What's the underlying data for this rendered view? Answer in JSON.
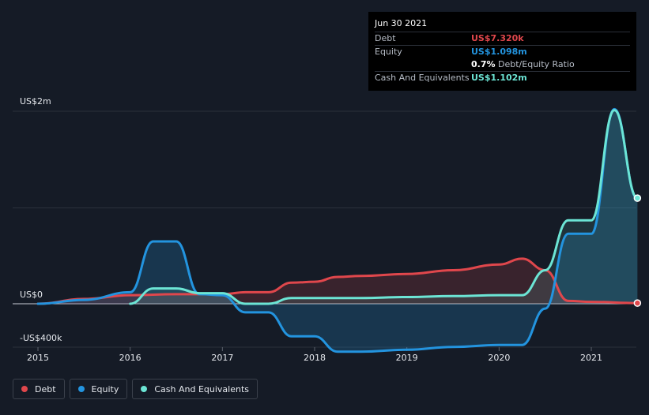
{
  "tooltip": {
    "date": "Jun 30 2021",
    "debt_label": "Debt",
    "debt_value": "US$7.320k",
    "equity_label": "Equity",
    "equity_value": "US$1.098m",
    "ratio_value": "0.7%",
    "ratio_label": "Debt/Equity Ratio",
    "cash_label": "Cash And Equivalents",
    "cash_value": "US$1.102m"
  },
  "legend": [
    {
      "label": "Debt",
      "color": "#e0474c"
    },
    {
      "label": "Equity",
      "color": "#2394df"
    },
    {
      "label": "Cash And Equivalents",
      "color": "#6ce5d5"
    }
  ],
  "chart_data": {
    "type": "line",
    "title": "",
    "xlabel": "",
    "ylabel": "",
    "y_tick_labels": [
      "US$2m",
      "US$0",
      "-US$400k"
    ],
    "x_tick_labels": [
      "2015",
      "2016",
      "2017",
      "2018",
      "2019",
      "2020",
      "2021"
    ],
    "xlim": [
      2014.7,
      2021.5
    ],
    "ylim": [
      -0.5,
      2.2
    ],
    "units": "US$ millions",
    "grid": true,
    "legend_position": "bottom-left",
    "series": [
      {
        "name": "Debt",
        "color": "#e0474c",
        "x": [
          2015.0,
          2015.5,
          2016.0,
          2016.5,
          2017.0,
          2017.25,
          2017.5,
          2017.75,
          2018.0,
          2018.25,
          2018.5,
          2019.0,
          2019.5,
          2020.0,
          2020.25,
          2020.5,
          2020.75,
          2021.0,
          2021.5
        ],
        "y": [
          0.0,
          0.05,
          0.09,
          0.1,
          0.1,
          0.12,
          0.12,
          0.22,
          0.23,
          0.28,
          0.29,
          0.31,
          0.35,
          0.41,
          0.47,
          0.35,
          0.03,
          0.02,
          0.007
        ]
      },
      {
        "name": "Equity",
        "color": "#2394df",
        "x": [
          2015.0,
          2015.5,
          2016.0,
          2016.25,
          2016.5,
          2016.75,
          2017.0,
          2017.25,
          2017.5,
          2017.75,
          2018.0,
          2018.25,
          2018.5,
          2019.0,
          2019.5,
          2020.0,
          2020.25,
          2020.5,
          2020.75,
          2021.0,
          2021.25,
          2021.5
        ],
        "y": [
          0.0,
          0.04,
          0.12,
          0.65,
          0.65,
          0.1,
          0.09,
          -0.09,
          -0.09,
          -0.34,
          -0.34,
          -0.5,
          -0.5,
          -0.48,
          -0.45,
          -0.43,
          -0.43,
          -0.05,
          0.73,
          0.73,
          2.03,
          1.098
        ]
      },
      {
        "name": "Cash And Equivalents",
        "color": "#6ce5d5",
        "x": [
          2016.0,
          2016.25,
          2016.5,
          2016.75,
          2017.0,
          2017.25,
          2017.5,
          2017.75,
          2018.0,
          2018.5,
          2019.0,
          2019.5,
          2020.0,
          2020.25,
          2020.5,
          2020.75,
          2021.0,
          2021.25,
          2021.5
        ],
        "y": [
          0.0,
          0.16,
          0.16,
          0.11,
          0.11,
          0.0,
          0.0,
          0.06,
          0.06,
          0.06,
          0.07,
          0.08,
          0.09,
          0.09,
          0.35,
          0.87,
          0.87,
          2.02,
          1.102
        ]
      }
    ]
  }
}
